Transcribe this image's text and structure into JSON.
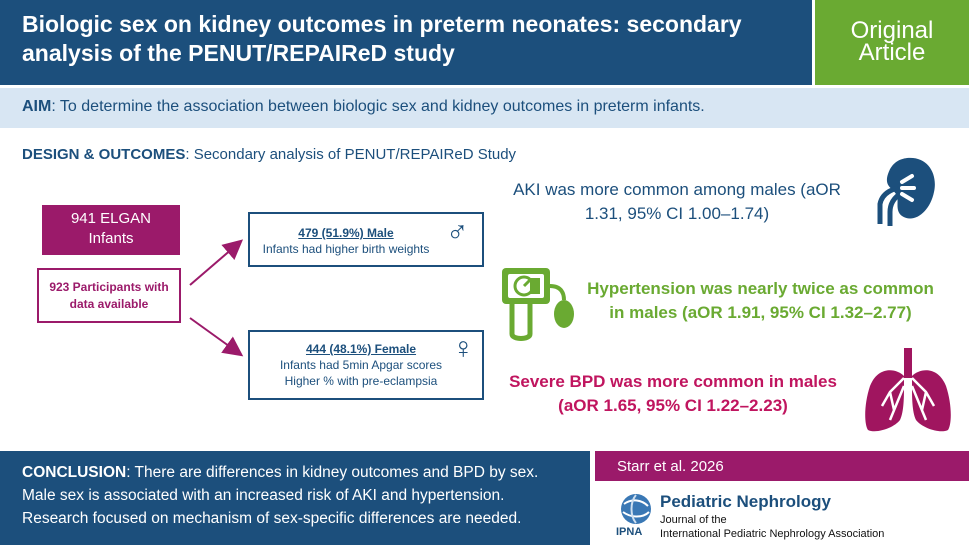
{
  "header": {
    "title_line1": "Biologic sex on kidney outcomes in preterm neonates: secondary",
    "title_line2": "analysis of the PENUT/REPAIReD study",
    "badge_line1": "Original",
    "badge_line2": "Article"
  },
  "aim": {
    "label": "AIM",
    "text": ": To determine the association between biologic sex and kidney outcomes in preterm infants."
  },
  "design": {
    "label": "DESIGN & OUTCOMES",
    "text": ": Secondary analysis of PENUT/REPAIReD Study"
  },
  "flow": {
    "elgan_line1": "941 ELGAN",
    "elgan_line2": "Infants",
    "participants_line1": "923 Participants with",
    "participants_line2": "data available",
    "male_heading": "479 (51.9%) Male",
    "male_note": "Infants had higher birth weights",
    "male_symbol": "♂",
    "female_heading": "444 (48.1%) Female",
    "female_note1": "Infants had 5min Apgar scores",
    "female_note2": "Higher % with pre-eclampsia",
    "female_symbol": "♀"
  },
  "results": {
    "aki_line1": "AKI was more common among males (aOR",
    "aki_line2": "1.31, 95% CI 1.00–1.74)",
    "htn_line1": "Hypertension was nearly twice as common",
    "htn_line2": "in males (aOR 1.91, 95% CI 1.32–2.77)",
    "bpd_line1": "Severe BPD was more common in males",
    "bpd_line2": "(aOR 1.65, 95% CI 1.22–2.23)"
  },
  "conclusion": {
    "label": "CONCLUSION",
    "line1": ": There are differences in kidney outcomes and BPD by sex.",
    "line2": "Male sex is associated with an increased risk of AKI and hypertension.",
    "line3": "Research focused on mechanism of sex-specific differences are needed."
  },
  "citation": "Starr et al. 2026",
  "journal": {
    "title": "Pediatric Nephrology",
    "sub1": "Journal of the",
    "sub2": "International Pediatric Nephrology Association",
    "logo_text": "IPNA"
  },
  "colors": {
    "navy": "#1c4f7c",
    "green": "#6aaa32",
    "magenta": "#9b1a6a",
    "pink": "#c0155f",
    "aim_band": "#d8e6f3"
  },
  "icons": [
    "kidney-icon",
    "blood-pressure-monitor-icon",
    "lungs-icon",
    "ipna-globe-logo"
  ]
}
